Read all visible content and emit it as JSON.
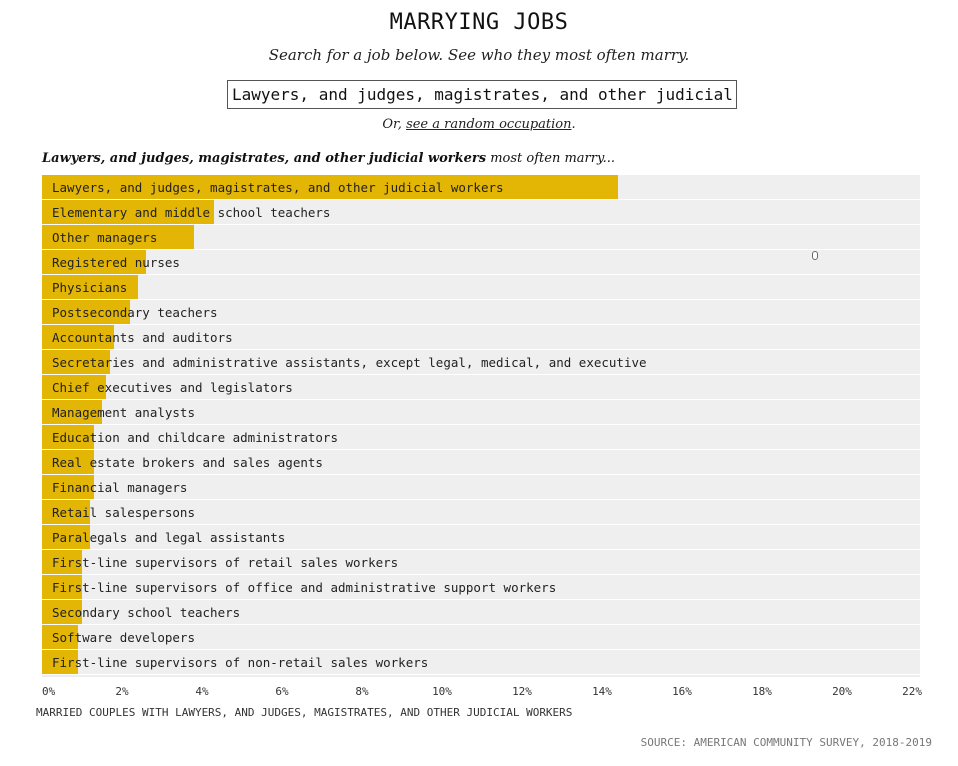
{
  "header": {
    "title": "MARRYING JOBS",
    "subtitle": "Search for a job below. See who they most often marry."
  },
  "search": {
    "value": "Lawyers, and judges, magistrates, and other judicial"
  },
  "random": {
    "prefix": "Or, ",
    "link_label": "see a random occupation",
    "suffix": "."
  },
  "chart_heading": {
    "occupation": "Lawyers, and judges, magistrates, and other judicial workers",
    "tail": " most often marry..."
  },
  "colors": {
    "bar": "#e3b505",
    "track": "#efefef"
  },
  "chart_data": {
    "type": "bar",
    "orientation": "horizontal",
    "xlabel": "MARRIED COUPLES WITH LAWYERS, AND JUDGES, MAGISTRATES, AND OTHER JUDICIAL WORKERS",
    "xlim": [
      0,
      22
    ],
    "xticks": [
      0,
      2,
      4,
      6,
      8,
      10,
      12,
      14,
      16,
      18,
      20,
      22
    ],
    "tick_suffix": "%",
    "grid": false,
    "categories": [
      "Lawyers, and judges, magistrates, and other judicial workers",
      "Elementary and middle school teachers",
      "Other managers",
      "Registered nurses",
      "Physicians",
      "Postsecondary teachers",
      "Accountants and auditors",
      "Secretaries and administrative assistants, except legal, medical, and executive",
      "Chief executives and legislators",
      "Management analysts",
      "Education and childcare administrators",
      "Real estate brokers and sales agents",
      "Financial managers",
      "Retail salespersons",
      "Paralegals and legal assistants",
      "First-line supervisors of retail sales workers",
      "First-line supervisors of office and administrative support workers",
      "Secondary school teachers",
      "Software developers",
      "First-line supervisors of non-retail sales workers"
    ],
    "values": [
      14.4,
      4.3,
      3.8,
      2.6,
      2.4,
      2.2,
      1.8,
      1.7,
      1.6,
      1.5,
      1.3,
      1.3,
      1.3,
      1.2,
      1.2,
      1.0,
      1.0,
      1.0,
      0.9,
      0.9
    ]
  },
  "footer": {
    "source": "SOURCE: AMERICAN COMMUNITY SURVEY, 2018-2019"
  }
}
